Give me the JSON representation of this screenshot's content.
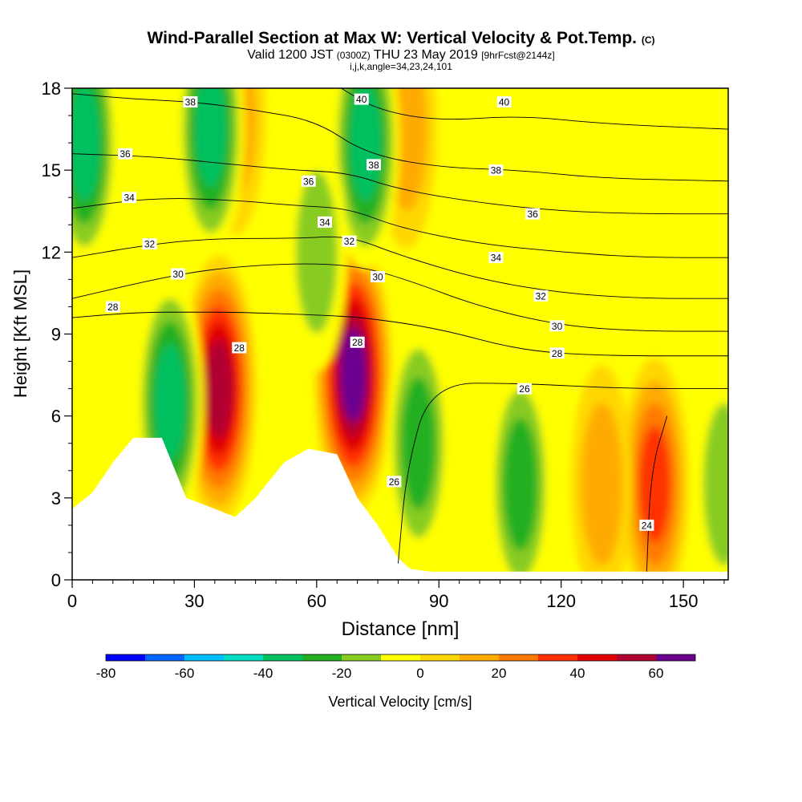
{
  "titles": {
    "main": "Wind-Parallel Section at Max W: Vertical Velocity & Pot.Temp.",
    "copyright": "(C)",
    "valid_prefix": "Valid 1200 JST",
    "valid_utc": "(0300Z)",
    "valid_date": "THU 23 May 2019",
    "forecast": "[9hrFcst@2144z]",
    "indices": "i,j,k,angle=34,23,24,101"
  },
  "chart_data": {
    "type": "heatmap",
    "xlabel": "Distance [nm]",
    "ylabel": "Height [Kft MSL]",
    "xlim": [
      0,
      161
    ],
    "ylim": [
      0,
      18
    ],
    "x_ticks": [
      0,
      30,
      60,
      90,
      120,
      150
    ],
    "y_ticks": [
      0,
      3,
      6,
      9,
      12,
      15,
      18
    ],
    "colorbar": {
      "label": "Vertical Velocity [cm/s]",
      "ticks": [
        -80,
        -60,
        -40,
        -20,
        0,
        20,
        40,
        60
      ],
      "levels": [
        -80,
        -70,
        -60,
        -50,
        -40,
        -30,
        -20,
        -10,
        0,
        10,
        20,
        30,
        40,
        50,
        60,
        70
      ],
      "colors": [
        "#0000ff",
        "#0066ff",
        "#00bfff",
        "#00dcc0",
        "#00c060",
        "#22b022",
        "#88cc22",
        "#ffff00",
        "#ffd700",
        "#ffaa00",
        "#ff7a00",
        "#ff3000",
        "#e00000",
        "#b00030",
        "#6a0090"
      ]
    },
    "terrain_kft": [
      [
        0,
        2.6
      ],
      [
        5,
        3.2
      ],
      [
        10,
        4.3
      ],
      [
        15,
        5.2
      ],
      [
        22,
        5.2
      ],
      [
        28,
        3.0
      ],
      [
        35,
        2.6
      ],
      [
        40,
        2.3
      ],
      [
        45,
        3.0
      ],
      [
        52,
        4.3
      ],
      [
        58,
        4.8
      ],
      [
        65,
        4.6
      ],
      [
        70,
        3.0
      ],
      [
        75,
        2.0
      ],
      [
        80,
        0.8
      ],
      [
        83,
        0.4
      ],
      [
        88,
        0.3
      ],
      [
        161,
        0.3
      ]
    ],
    "vertical_velocity_features": [
      {
        "x": 36,
        "y": 7.0,
        "value": 60
      },
      {
        "x": 69,
        "y": 7.5,
        "value": 70
      },
      {
        "x": 143,
        "y": 3.5,
        "value": 45
      },
      {
        "x": 130,
        "y": 3.5,
        "value": 20
      },
      {
        "x": 40,
        "y": 17.0,
        "value": 20
      },
      {
        "x": 82,
        "y": 16.5,
        "value": 20
      },
      {
        "x": 24,
        "y": 6.5,
        "value": -40
      },
      {
        "x": 3,
        "y": 16.0,
        "value": -40
      },
      {
        "x": 34,
        "y": 16.5,
        "value": -40
      },
      {
        "x": 72,
        "y": 16.0,
        "value": -40
      },
      {
        "x": 85,
        "y": 5.0,
        "value": -30
      },
      {
        "x": 110,
        "y": 3.5,
        "value": -30
      },
      {
        "x": 160,
        "y": 3.5,
        "value": -20
      },
      {
        "x": 60,
        "y": 12.0,
        "value": -20
      }
    ],
    "theta_contours": [
      {
        "label": "24",
        "points": [
          [
            141,
            0.3
          ],
          [
            142,
            4
          ],
          [
            146,
            6
          ]
        ]
      },
      {
        "label": "26",
        "points": [
          [
            80,
            0.6
          ],
          [
            82,
            4
          ],
          [
            88,
            7.2
          ],
          [
            110,
            7.2
          ],
          [
            135,
            7.0
          ],
          [
            161,
            7.0
          ]
        ]
      },
      {
        "label": "28",
        "points": [
          [
            0,
            9.6
          ],
          [
            16,
            9.8
          ],
          [
            30,
            9.8
          ],
          [
            40,
            9.8
          ],
          [
            60,
            9.7
          ],
          [
            72,
            9.6
          ],
          [
            90,
            9.2
          ],
          [
            110,
            8.4
          ],
          [
            130,
            8.2
          ],
          [
            161,
            8.2
          ]
        ]
      },
      {
        "label": "30",
        "points": [
          [
            0,
            10.3
          ],
          [
            20,
            11.0
          ],
          [
            35,
            11.4
          ],
          [
            55,
            11.6
          ],
          [
            70,
            11.5
          ],
          [
            82,
            11.0
          ],
          [
            100,
            10.0
          ],
          [
            120,
            9.3
          ],
          [
            140,
            9.1
          ],
          [
            161,
            9.1
          ]
        ]
      },
      {
        "label": "32",
        "points": [
          [
            0,
            11.8
          ],
          [
            20,
            12.3
          ],
          [
            35,
            12.5
          ],
          [
            55,
            12.5
          ],
          [
            68,
            12.6
          ],
          [
            80,
            11.9
          ],
          [
            100,
            11.0
          ],
          [
            120,
            10.5
          ],
          [
            140,
            10.3
          ],
          [
            161,
            10.3
          ]
        ]
      },
      {
        "label": "34",
        "points": [
          [
            0,
            13.6
          ],
          [
            20,
            14.0
          ],
          [
            40,
            13.9
          ],
          [
            55,
            13.7
          ],
          [
            68,
            13.6
          ],
          [
            80,
            12.9
          ],
          [
            100,
            12.3
          ],
          [
            120,
            12.0
          ],
          [
            140,
            11.8
          ],
          [
            161,
            11.8
          ]
        ]
      },
      {
        "label": "36",
        "points": [
          [
            0,
            15.6
          ],
          [
            20,
            15.5
          ],
          [
            40,
            15.2
          ],
          [
            55,
            15.0
          ],
          [
            68,
            14.9
          ],
          [
            80,
            14.3
          ],
          [
            100,
            13.8
          ],
          [
            120,
            13.5
          ],
          [
            140,
            13.4
          ],
          [
            161,
            13.4
          ]
        ]
      },
      {
        "label": "38",
        "points": [
          [
            0,
            17.8
          ],
          [
            15,
            17.6
          ],
          [
            30,
            17.5
          ],
          [
            45,
            17.2
          ],
          [
            60,
            16.8
          ],
          [
            72,
            15.6
          ],
          [
            90,
            15.1
          ],
          [
            110,
            15.0
          ],
          [
            130,
            14.7
          ],
          [
            161,
            14.6
          ]
        ]
      },
      {
        "label": "40",
        "points": [
          [
            66,
            18.0
          ],
          [
            75,
            17.2
          ],
          [
            90,
            16.8
          ],
          [
            110,
            17.0
          ],
          [
            130,
            16.7
          ],
          [
            161,
            16.5
          ]
        ]
      }
    ],
    "contour_labels": [
      {
        "label": "38",
        "x": 29,
        "y": 17.5
      },
      {
        "label": "40",
        "x": 71,
        "y": 17.6
      },
      {
        "label": "40",
        "x": 106,
        "y": 17.5
      },
      {
        "label": "36",
        "x": 13,
        "y": 15.6
      },
      {
        "label": "38",
        "x": 74,
        "y": 15.2
      },
      {
        "label": "38",
        "x": 104,
        "y": 15.0
      },
      {
        "label": "34",
        "x": 14,
        "y": 14.0
      },
      {
        "label": "36",
        "x": 58,
        "y": 14.6
      },
      {
        "label": "36",
        "x": 113,
        "y": 13.4
      },
      {
        "label": "34",
        "x": 62,
        "y": 13.1
      },
      {
        "label": "32",
        "x": 19,
        "y": 12.3
      },
      {
        "label": "32",
        "x": 68,
        "y": 12.4
      },
      {
        "label": "34",
        "x": 104,
        "y": 11.8
      },
      {
        "label": "30",
        "x": 26,
        "y": 11.2
      },
      {
        "label": "30",
        "x": 75,
        "y": 11.1
      },
      {
        "label": "32",
        "x": 115,
        "y": 10.4
      },
      {
        "label": "28",
        "x": 10,
        "y": 10.0
      },
      {
        "label": "30",
        "x": 119,
        "y": 9.3
      },
      {
        "label": "28",
        "x": 41,
        "y": 8.5
      },
      {
        "label": "28",
        "x": 70,
        "y": 8.7
      },
      {
        "label": "28",
        "x": 119,
        "y": 8.3
      },
      {
        "label": "26",
        "x": 111,
        "y": 7.0
      },
      {
        "label": "26",
        "x": 79,
        "y": 3.6
      },
      {
        "label": "24",
        "x": 141,
        "y": 2.0
      }
    ]
  }
}
